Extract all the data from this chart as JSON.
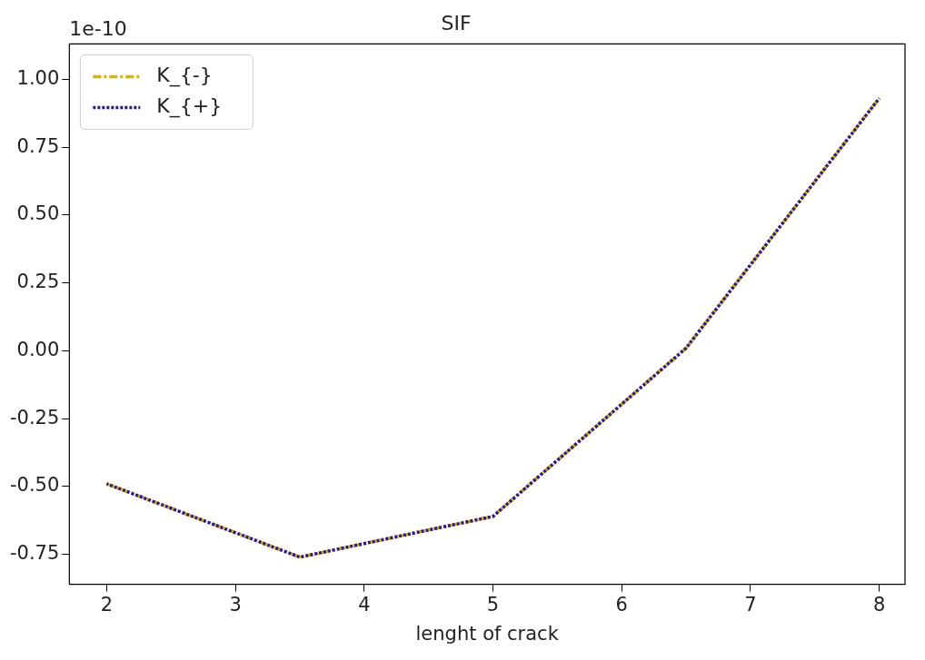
{
  "chart_data": {
    "type": "line",
    "title": "SIF",
    "xlabel": "lenght of crack",
    "annotations": [
      "1e-10"
    ],
    "x": [
      2,
      3.5,
      5,
      6.5,
      8
    ],
    "series": [
      {
        "name": "K_{-}",
        "color": "#dcb400",
        "values": [
          -0.49,
          -0.76,
          -0.61,
          0.01,
          0.93
        ],
        "line_style": "dashed"
      },
      {
        "name": "K_{+}",
        "color": "#2e1a8c",
        "values": [
          -0.49,
          -0.76,
          -0.61,
          0.01,
          0.93
        ],
        "line_style": "dotted"
      }
    ],
    "xlim": [
      1.71,
      8.2
    ],
    "xticks": [
      2,
      3,
      4,
      5,
      6,
      7,
      8
    ],
    "ylim": [
      -0.86,
      1.13
    ],
    "yticks": [
      -0.75,
      {
        "value": -0.5,
        "label": "-0.50"
      },
      -0.25,
      {
        "value": 0,
        "label": "0.00"
      },
      0.25,
      {
        "value": 0.5,
        "label": "0.50"
      },
      0.75,
      {
        "value": 1,
        "label": "1.00"
      }
    ],
    "legend": "top left",
    "marker": "none",
    "grid": false
  }
}
